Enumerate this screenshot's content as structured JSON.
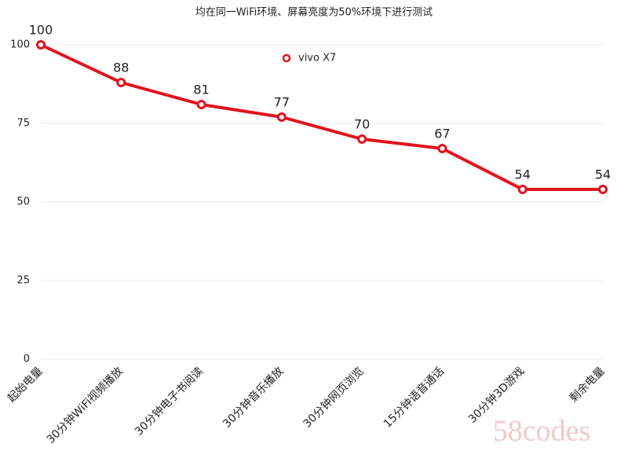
{
  "chart_data": {
    "type": "line",
    "title": "均在同一WiFi环境、屏幕亮度为50%环境下进行测试",
    "categories": [
      "起始电量",
      "30分钟WiFi视频播放",
      "30分钟电子书阅读",
      "30分钟音乐播放",
      "30分钟网页浏览",
      "15分钟语音通话",
      "30分钟3D游戏",
      "剩余电量"
    ],
    "series": [
      {
        "name": "vivo X7",
        "color": "#e0141e",
        "values": [
          100,
          88,
          81,
          77,
          70,
          67,
          54,
          54
        ]
      }
    ],
    "ylim": [
      0,
      100
    ],
    "yticks": [
      0,
      25,
      50,
      75,
      100
    ],
    "grid": true,
    "watermark": "58codes"
  }
}
